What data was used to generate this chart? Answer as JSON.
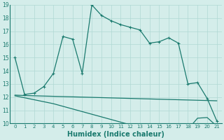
{
  "line1_x": [
    0,
    1,
    2,
    3,
    4,
    5,
    6,
    7,
    8,
    9,
    10,
    11,
    12,
    13,
    14,
    15,
    16,
    17,
    18,
    19,
    20,
    21
  ],
  "line1_y": [
    15.0,
    12.2,
    12.3,
    12.8,
    13.8,
    16.6,
    16.4,
    13.8,
    19.0,
    18.2,
    17.8,
    17.5,
    17.3,
    17.1,
    16.1,
    16.2,
    16.5,
    16.1,
    13.0,
    13.1,
    11.9,
    10.2
  ],
  "line2_x": [
    0,
    1,
    2,
    3,
    4,
    5,
    6,
    7,
    8,
    9,
    10,
    11,
    12,
    13,
    14,
    15,
    16,
    17,
    18,
    19,
    20,
    21
  ],
  "line2_y": [
    12.15,
    12.12,
    12.1,
    12.08,
    12.06,
    12.04,
    12.02,
    12.0,
    11.98,
    11.96,
    11.94,
    11.92,
    11.9,
    11.88,
    11.86,
    11.84,
    11.82,
    11.8,
    11.78,
    11.76,
    11.74,
    11.72
  ],
  "line3_x": [
    0,
    1,
    2,
    3,
    4,
    5,
    6,
    7,
    8,
    9,
    10,
    11,
    12,
    13,
    14,
    15,
    16,
    17,
    18,
    19,
    20,
    21
  ],
  "line3_y": [
    12.1,
    11.95,
    11.8,
    11.65,
    11.5,
    11.3,
    11.1,
    10.9,
    10.7,
    10.5,
    10.3,
    10.1,
    9.9,
    9.7,
    9.55,
    9.45,
    9.4,
    9.35,
    9.55,
    10.4,
    10.45,
    9.8
  ],
  "color": "#1a7a6e",
  "bg_color": "#d4edea",
  "grid_color": "#b0d8d4",
  "xlabel": "Humidex (Indice chaleur)",
  "xlim": [
    0,
    21
  ],
  "ylim": [
    10,
    19
  ],
  "xticks": [
    0,
    1,
    2,
    3,
    4,
    5,
    6,
    7,
    8,
    9,
    10,
    11,
    12,
    13,
    14,
    15,
    16,
    17,
    18,
    19,
    20,
    21
  ],
  "yticks": [
    10,
    11,
    12,
    13,
    14,
    15,
    16,
    17,
    18,
    19
  ]
}
